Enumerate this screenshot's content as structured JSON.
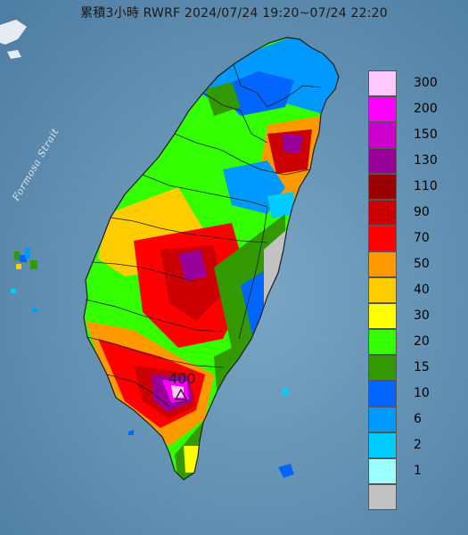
{
  "header": {
    "title": "累積3小時 RWRF 2024/07/24 19:20~07/24 22:20"
  },
  "map": {
    "sea_label": "Formosa Strait",
    "peak_value": "400",
    "peak_marker_icon": "triangle-marker-icon",
    "sea_color": "#5f8fb0",
    "land_outline_color": "#1e1e1e"
  },
  "legend": {
    "items": [
      {
        "label": "300",
        "color": "#ffc8ff"
      },
      {
        "label": "200",
        "color": "#ff00ff"
      },
      {
        "label": "150",
        "color": "#cc00cc"
      },
      {
        "label": "130",
        "color": "#990099"
      },
      {
        "label": "110",
        "color": "#990000"
      },
      {
        "label": "90",
        "color": "#cc0000"
      },
      {
        "label": "70",
        "color": "#ff0000"
      },
      {
        "label": "50",
        "color": "#ff9900"
      },
      {
        "label": "40",
        "color": "#ffcc00"
      },
      {
        "label": "30",
        "color": "#ffff00"
      },
      {
        "label": "20",
        "color": "#33ff00"
      },
      {
        "label": "15",
        "color": "#339900"
      },
      {
        "label": "10",
        "color": "#0066ff"
      },
      {
        "label": "6",
        "color": "#0099ff"
      },
      {
        "label": "2",
        "color": "#00ccff"
      },
      {
        "label": "1",
        "color": "#99ffff"
      },
      {
        "label": "",
        "color": "#c2c2c2"
      }
    ]
  }
}
